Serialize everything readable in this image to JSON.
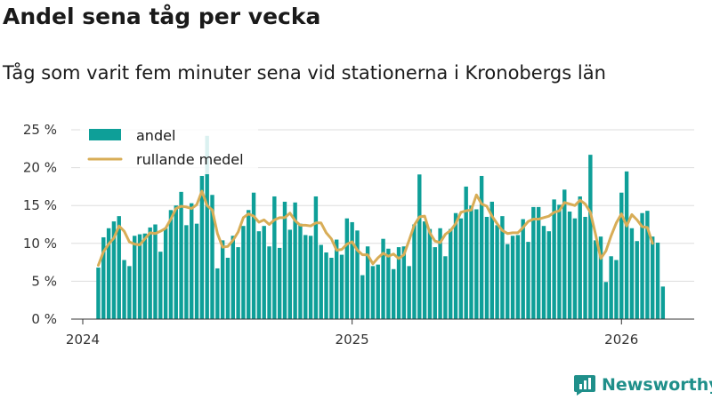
{
  "title": "Andel sena tåg per vecka",
  "subtitle": "Tåg som varit fem minuter sena vid stationerna i Kronobergs län",
  "brand": "Newsworthy",
  "colors": {
    "bars": "#0e9f98",
    "line": "#d8ad57",
    "grid": "#dddddd",
    "brand": "#1f8f8a"
  },
  "chart_data": {
    "type": "bar",
    "title": "Andel sena tåg per vecka",
    "xlabel": "",
    "ylabel": "",
    "ylim": [
      0,
      25
    ],
    "y_ticks": [
      0,
      5,
      10,
      15,
      20,
      25
    ],
    "y_tick_labels": [
      "0 %",
      "5 %",
      "10 %",
      "15 %",
      "20 %",
      "25 %"
    ],
    "x_ticks": [
      {
        "week": 0,
        "label": "2024"
      },
      {
        "week": 52,
        "label": "2025"
      },
      {
        "week": 104,
        "label": "2026"
      }
    ],
    "week_range": [
      0,
      114
    ],
    "first_bar_week": 3,
    "legend": [
      {
        "key": "bar",
        "label": "andel"
      },
      {
        "key": "line",
        "label": "rullande medel"
      }
    ],
    "series": [
      {
        "name": "andel",
        "type": "bar",
        "values": [
          6.8,
          10.8,
          12.0,
          12.9,
          13.6,
          7.8,
          7.0,
          11.0,
          11.2,
          11.3,
          12.1,
          12.5,
          8.9,
          12.0,
          14.4,
          15.0,
          16.8,
          12.4,
          15.3,
          12.6,
          18.9,
          24.2,
          16.4,
          6.7,
          10.4,
          8.1,
          11.0,
          9.5,
          12.3,
          14.4,
          16.7,
          11.6,
          12.3,
          9.6,
          16.2,
          9.4,
          15.5,
          11.8,
          15.4,
          12.6,
          11.1,
          11.0,
          16.2,
          9.8,
          8.8,
          8.1,
          10.5,
          8.5,
          13.3,
          12.8,
          11.7,
          5.8,
          9.6,
          7.0,
          7.2,
          10.6,
          9.3,
          6.6,
          9.5,
          9.6,
          7.0,
          12.5,
          19.1,
          12.9,
          11.9,
          9.5,
          12.0,
          8.3,
          11.9,
          14.0,
          13.3,
          17.5,
          15.0,
          14.5,
          18.9,
          13.5,
          15.5,
          12.4,
          13.6,
          9.9,
          11.0,
          11.1,
          13.2,
          10.2,
          14.8,
          14.8,
          12.3,
          11.6,
          15.8,
          15.1,
          17.1,
          14.2,
          13.3,
          16.2,
          13.5,
          21.7,
          10.4,
          10.9,
          4.9,
          8.3,
          7.8,
          16.7,
          19.5,
          12.0,
          10.3,
          14.0,
          14.3,
          10.9,
          10.1,
          4.3
        ]
      },
      {
        "name": "rullande medel",
        "type": "line",
        "values": [
          7.1,
          8.9,
          9.9,
          10.7,
          12.3,
          11.6,
          10.2,
          9.9,
          9.8,
          10.6,
          11.4,
          11.3,
          11.6,
          12.0,
          13.2,
          14.6,
          14.9,
          14.8,
          14.6,
          15.1,
          16.9,
          15.0,
          14.4,
          11.3,
          9.5,
          9.6,
          10.4,
          11.5,
          13.4,
          13.9,
          13.6,
          12.8,
          13.1,
          12.5,
          13.1,
          13.4,
          13.4,
          14.0,
          13.0,
          12.4,
          12.4,
          12.3,
          12.7,
          12.7,
          11.4,
          10.6,
          9.1,
          9.2,
          9.9,
          10.2,
          9.1,
          8.5,
          8.5,
          7.3,
          8.1,
          8.7,
          8.3,
          8.6,
          8.0,
          8.5,
          10.4,
          12.4,
          13.5,
          13.6,
          11.4,
          10.3,
          10.1,
          11.2,
          11.7,
          12.6,
          14.1,
          14.3,
          14.4,
          16.4,
          15.2,
          14.9,
          13.6,
          12.6,
          11.7,
          11.3,
          11.4,
          11.4,
          12.1,
          12.9,
          13.2,
          13.2,
          13.4,
          13.6,
          14.1,
          14.3,
          15.4,
          15.2,
          15.0,
          15.7,
          15.2,
          14.1,
          11.2,
          8.0,
          9.0,
          11.0,
          12.7,
          13.9,
          12.3,
          13.8,
          13.1,
          12.2,
          12.1,
          10.0
        ]
      }
    ]
  }
}
